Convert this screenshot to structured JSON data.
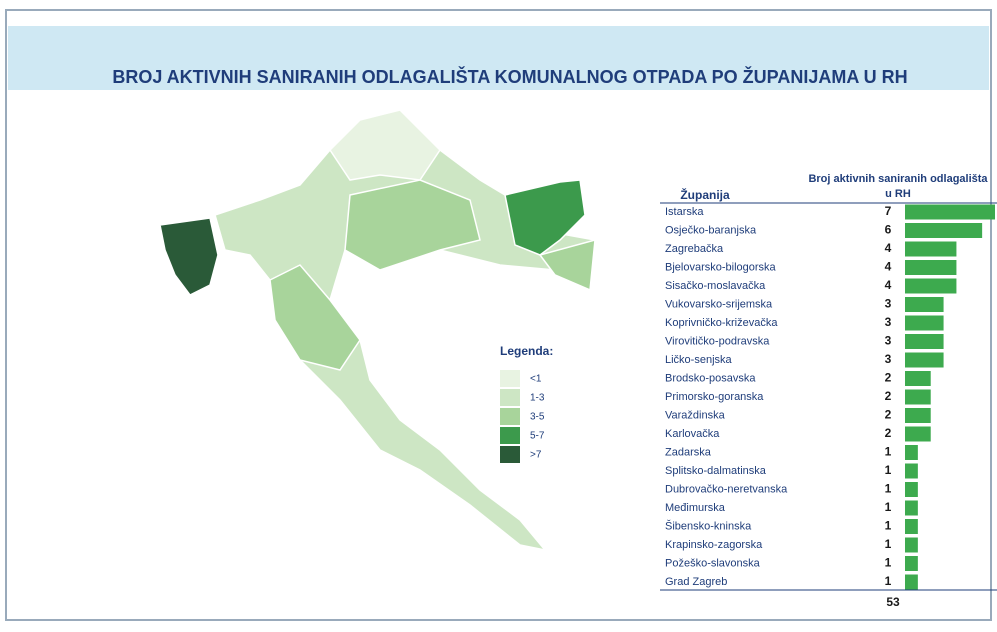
{
  "title": "BROJ AKTIVNIH SANIRANIH ODLAGALIŠTA KOMUNALNOG OTPADA PO ŽUPANIJAMA U RH",
  "legend": {
    "title": "Legenda:",
    "items": [
      {
        "label": "<1",
        "color": "#e8f3e2"
      },
      {
        "label": "1-3",
        "color": "#cde6c4"
      },
      {
        "label": "3-5",
        "color": "#a8d49b"
      },
      {
        "label": "5-7",
        "color": "#3c9a4c"
      },
      {
        "label": ">7",
        "color": "#2a5a38"
      }
    ]
  },
  "table": {
    "headers": [
      "Županija",
      "Broj aktivnih saniranih odlagališta",
      "u RH"
    ],
    "bar_color": "#3daa4e",
    "rows": [
      [
        "Istarska",
        7
      ],
      [
        "Osječko-baranjska",
        6
      ],
      [
        "Zagrebačka",
        4
      ],
      [
        "Bjelovarsko-bilogorska",
        4
      ],
      [
        "Sisačko-moslavačka",
        4
      ],
      [
        "Vukovarsko-srijemska",
        3
      ],
      [
        "Koprivničko-križevačka",
        3
      ],
      [
        "Virovitičko-podravska",
        3
      ],
      [
        "Ličko-senjska",
        3
      ],
      [
        "Brodsko-posavska",
        2
      ],
      [
        "Primorsko-goranska",
        2
      ],
      [
        "Varaždinska",
        2
      ],
      [
        "Karlovačka",
        2
      ],
      [
        "Zadarska",
        1
      ],
      [
        "Splitsko-dalmatinska",
        1
      ],
      [
        "Dubrovačko-neretvanska",
        1
      ],
      [
        "Međimurska",
        1
      ],
      [
        "Šibensko-kninska",
        1
      ],
      [
        "Krapinsko-zagorska",
        1
      ],
      [
        "Požeško-slavonska",
        1
      ],
      [
        "Grad Zagreb",
        1
      ]
    ],
    "total": 53
  }
}
